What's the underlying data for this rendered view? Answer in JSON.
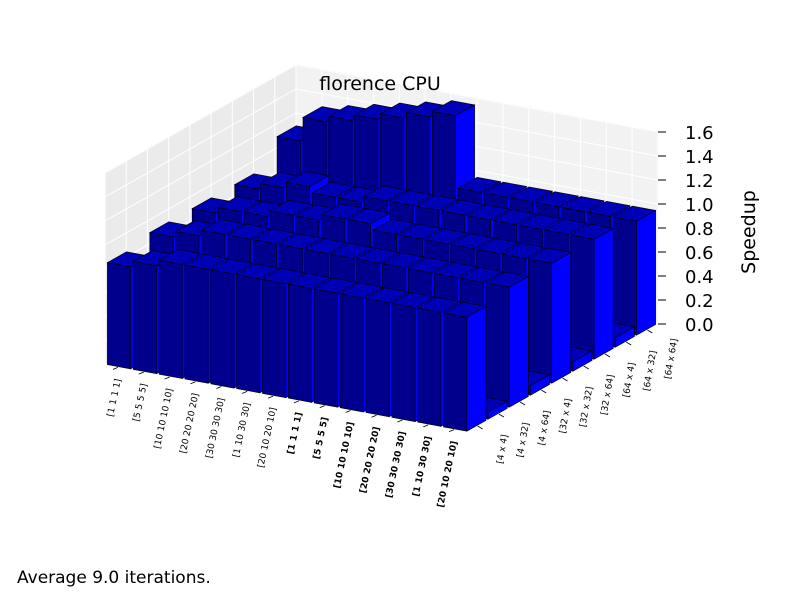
{
  "chart_data": {
    "type": "bar3d",
    "title": "florence CPU",
    "zlabel": "Speedup",
    "zlim": [
      0.0,
      1.6
    ],
    "z_ticks": [
      "0.0",
      "0.2",
      "0.4",
      "0.6",
      "0.8",
      "1.0",
      "1.2",
      "1.4",
      "1.6"
    ],
    "grid": true,
    "x_categories": [
      "[1 1 1 1]",
      "[5 5 5 5]",
      "[10 10 10 10]",
      "[20 20 20 20]",
      "[30 30 30 30]",
      "[1 10 30 30]",
      "[20 10 20 10]",
      "[1 1 1 1]",
      "[5 5 5 5]",
      "[10 10 10 10]",
      "[20 20 20 20]",
      "[30 30 30 30]",
      "[1 10 30 30]",
      "[20 10 20 10]"
    ],
    "x_bold_from": 7,
    "y_categories": [
      "[4 x 4]",
      "[4 x 32]",
      "[4 x 64]",
      "[32 x 4]",
      "[32 x 32]",
      "[32 x 64]",
      "[64 x 4]",
      "[64 x 32]",
      "[64 x 64]"
    ],
    "values": [
      [
        0.85,
        0.06,
        0.9,
        0.08,
        0.9,
        0.08,
        0.9,
        0.08,
        1.1
      ],
      [
        0.9,
        0.06,
        0.95,
        0.08,
        0.95,
        0.08,
        0.95,
        0.08,
        1.3
      ],
      [
        0.95,
        0.06,
        1.0,
        0.08,
        0.95,
        0.08,
        1.0,
        0.08,
        1.35
      ],
      [
        0.95,
        0.06,
        1.0,
        0.08,
        1.0,
        0.08,
        0.95,
        0.08,
        1.4
      ],
      [
        0.95,
        0.06,
        1.0,
        0.08,
        1.0,
        0.08,
        0.95,
        0.08,
        1.45
      ],
      [
        0.95,
        0.06,
        1.0,
        0.08,
        1.05,
        0.08,
        1.0,
        0.08,
        1.5
      ],
      [
        0.95,
        0.06,
        1.0,
        0.08,
        1.05,
        0.08,
        1.0,
        0.08,
        1.55
      ],
      [
        0.95,
        0.06,
        1.0,
        0.08,
        1.0,
        0.08,
        1.0,
        0.08,
        0.95
      ],
      [
        0.95,
        0.06,
        1.0,
        0.08,
        1.0,
        0.08,
        1.0,
        0.08,
        0.95
      ],
      [
        0.95,
        0.06,
        1.0,
        0.08,
        1.0,
        0.08,
        1.0,
        0.08,
        0.95
      ],
      [
        0.95,
        0.06,
        1.0,
        0.08,
        1.0,
        0.08,
        1.0,
        0.08,
        0.95
      ],
      [
        0.95,
        0.06,
        1.0,
        0.08,
        1.0,
        0.08,
        1.0,
        0.08,
        0.95
      ],
      [
        0.95,
        0.06,
        1.0,
        0.08,
        1.0,
        0.08,
        1.0,
        0.08,
        0.95
      ],
      [
        0.95,
        0.06,
        1.0,
        0.08,
        1.0,
        0.08,
        1.0,
        0.08,
        0.95
      ]
    ],
    "bar_color": "#0000ff"
  },
  "footnote": "Average 9.0 iterations."
}
